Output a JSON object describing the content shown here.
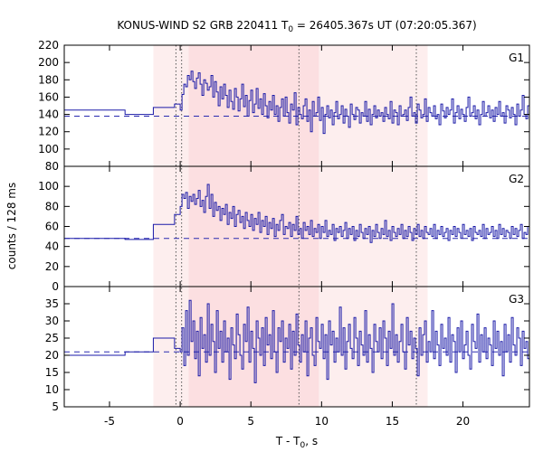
{
  "chart_data": {
    "type": "line",
    "title_main": "KONUS-WIND S2 GRB 220411 T",
    "title_sub": "0",
    "title_rest": " = 26405.367s UT (07:20:05.367)",
    "xlabel_main": "T - T",
    "xlabel_sub": "0",
    "xlabel_rest": ", s",
    "ylabel": "counts / 128 ms",
    "xlim": [
      -8.2,
      24.7
    ],
    "xticks": [
      -5,
      0,
      5,
      10,
      15,
      20
    ],
    "shaded_light": [
      -1.9,
      17.5
    ],
    "shaded_dark": [
      0.6,
      9.8
    ],
    "dotted_lines": [
      -0.3,
      0.1,
      8.4,
      16.7
    ],
    "panels": [
      {
        "name": "G1",
        "ylim": [
          80,
          220
        ],
        "yticks": [
          80,
          100,
          120,
          140,
          160,
          180,
          200,
          220
        ],
        "background": 138,
        "pre_steps": [
          {
            "x": [
              -8.2,
              -3.9
            ],
            "y": 145
          },
          {
            "x": [
              -3.9,
              -1.9
            ],
            "y": 140
          },
          {
            "x": [
              -1.9,
              -0.4
            ],
            "y": 148
          },
          {
            "x": [
              -0.4,
              0.0
            ],
            "y": 152
          }
        ],
        "series": {
          "start": 0.0,
          "dt": 0.128,
          "values": [
            145,
            163,
            175,
            172,
            185,
            180,
            190,
            178,
            170,
            182,
            188,
            175,
            162,
            180,
            176,
            168,
            172,
            185,
            160,
            178,
            166,
            150,
            172,
            158,
            175,
            162,
            148,
            168,
            155,
            146,
            170,
            160,
            144,
            158,
            175,
            149,
            162,
            138,
            156,
            168,
            142,
            152,
            170,
            147,
            158,
            140,
            164,
            150,
            136,
            155,
            145,
            162,
            140,
            150,
            132,
            148,
            158,
            138,
            160,
            142,
            130,
            152,
            145,
            165,
            128,
            148,
            140,
            135,
            150,
            158,
            132,
            145,
            120,
            155,
            138,
            142,
            160,
            133,
            148,
            118,
            140,
            150,
            136,
            145,
            128,
            142,
            155,
            135,
            140,
            150,
            130,
            146,
            138,
            125,
            152,
            140,
            134,
            148,
            145,
            130,
            142,
            138,
            155,
            132,
            146,
            128,
            140,
            150,
            136,
            145,
            138,
            142,
            132,
            148,
            140,
            135,
            155,
            130,
            145,
            142,
            128,
            150,
            138,
            140,
            145,
            133,
            148,
            160,
            138,
            142,
            130,
            152,
            145,
            136,
            140,
            158,
            132,
            148,
            142,
            138,
            150,
            135,
            140,
            128,
            152,
            144,
            136,
            148,
            140,
            145,
            158,
            130,
            142,
            150,
            135,
            146,
            140,
            132,
            148,
            160,
            138,
            142,
            150,
            135,
            145,
            128,
            140,
            155,
            138,
            142,
            150,
            136,
            145,
            132,
            148,
            140,
            155,
            138,
            142,
            130,
            150,
            145,
            136,
            148,
            140,
            128,
            152,
            138,
            145,
            162,
            140,
            135,
            150,
            142,
            148,
            138,
            145,
            160,
            133,
            142,
            150,
            138,
            145,
            165,
            140,
            148,
            155,
            170,
            150,
            145,
            162,
            140,
            158,
            148,
            168,
            142,
            150,
            155,
            138,
            148,
            160,
            145,
            140,
            152,
            135,
            158,
            148,
            140,
            150,
            162,
            145,
            138,
            155,
            142,
            150,
            130,
            148,
            158,
            140,
            145,
            152,
            135,
            150,
            142,
            128,
            148,
            155,
            138,
            145,
            150,
            140,
            160,
            135,
            148,
            142,
            130,
            150,
            145,
            138,
            155,
            140,
            148,
            132,
            150,
            142,
            138,
            152,
            145,
            140,
            148,
            136,
            155,
            142,
            150,
            128,
            145,
            152,
            140,
            138,
            158,
            145,
            150,
            135,
            148,
            142,
            160,
            138,
            152,
            145,
            140,
            148,
            136,
            150,
            142,
            155,
            138,
            145,
            130,
            152,
            148,
            140,
            162,
            145,
            138,
            150,
            142,
            148,
            155,
            135,
            145,
            140,
            150,
            128,
            148,
            158,
            142,
            138,
            152,
            145,
            140,
            160,
            135,
            150,
            148,
            142,
            138,
            155,
            145,
            140,
            150,
            136,
            148,
            170,
            142
          ]
        }
      },
      {
        "name": "G2",
        "ylim": [
          0,
          120
        ],
        "yticks": [
          0,
          20,
          40,
          60,
          80,
          100
        ],
        "background": 48,
        "pre_steps": [
          {
            "x": [
              -8.2,
              -3.9
            ],
            "y": 48
          },
          {
            "x": [
              -3.9,
              -1.9
            ],
            "y": 47
          },
          {
            "x": [
              -1.9,
              -0.4
            ],
            "y": 62
          },
          {
            "x": [
              -0.4,
              0.0
            ],
            "y": 72
          }
        ],
        "series": {
          "start": 0.0,
          "dt": 0.128,
          "values": [
            80,
            92,
            88,
            94,
            78,
            90,
            85,
            92,
            82,
            88,
            96,
            80,
            86,
            74,
            90,
            102,
            78,
            92,
            70,
            84,
            76,
            80,
            66,
            78,
            72,
            82,
            62,
            74,
            68,
            80,
            60,
            72,
            76,
            64,
            70,
            58,
            74,
            66,
            60,
            72,
            56,
            68,
            62,
            74,
            54,
            66,
            60,
            70,
            52,
            64,
            58,
            68,
            50,
            62,
            56,
            66,
            72,
            52,
            60,
            58,
            64,
            50,
            62,
            56,
            70,
            52,
            58,
            48,
            64,
            56,
            60,
            52,
            66,
            50,
            58,
            54,
            62,
            48,
            60,
            54,
            66,
            50,
            56,
            52,
            62,
            46,
            58,
            54,
            60,
            50,
            56,
            64,
            48,
            58,
            52,
            60,
            46,
            56,
            50,
            62,
            54,
            48,
            58,
            52,
            60,
            44,
            56,
            50,
            62,
            54,
            48,
            58,
            52,
            66,
            50,
            56,
            46,
            60,
            54,
            50,
            58,
            52,
            62,
            48,
            56,
            50,
            60,
            54,
            46,
            58,
            52,
            62,
            50,
            56,
            48,
            60,
            54,
            52,
            58,
            50,
            62,
            48,
            56,
            52,
            60,
            50,
            54,
            58,
            46,
            56,
            52,
            60,
            50,
            58,
            54,
            48,
            62,
            52,
            56,
            50,
            58,
            46,
            60,
            54,
            52,
            56,
            50,
            62,
            48,
            58,
            52,
            54,
            60,
            50,
            56,
            48,
            62,
            52,
            58,
            50,
            56,
            54,
            48,
            60,
            52,
            58,
            50,
            56,
            62,
            48,
            54,
            52,
            60,
            50,
            58,
            54,
            48,
            56,
            52,
            62,
            50,
            58,
            54,
            52,
            60,
            56,
            64,
            58,
            68,
            62,
            72,
            66,
            60,
            64,
            58,
            66,
            60,
            54,
            62,
            58,
            52,
            60,
            56,
            50,
            58,
            54,
            62,
            52,
            56,
            50,
            60,
            54,
            48,
            58,
            52,
            56,
            50,
            60,
            46,
            54,
            52,
            58,
            50,
            56,
            48,
            60,
            52,
            54,
            50,
            58,
            46,
            56,
            52,
            60,
            50,
            54,
            48,
            58,
            52,
            56,
            50,
            60,
            48,
            54,
            52,
            58,
            46,
            56,
            50,
            60,
            52,
            54,
            48,
            58,
            50,
            56,
            52,
            60,
            48,
            54,
            50,
            58,
            52,
            56,
            46,
            60,
            50,
            54,
            52,
            58,
            48,
            56,
            50,
            60,
            52,
            54,
            48,
            58,
            50,
            56,
            52,
            60,
            46,
            54,
            50,
            58,
            52,
            56,
            48,
            60,
            50,
            54,
            52,
            58,
            48,
            56,
            50,
            54,
            52,
            58,
            46,
            56,
            50,
            54,
            48,
            52,
            50,
            56
          ]
        }
      },
      {
        "name": "G3",
        "ylim": [
          5,
          40
        ],
        "yticks": [
          5,
          10,
          15,
          20,
          25,
          30,
          35
        ],
        "background": 21,
        "pre_steps": [
          {
            "x": [
              -8.2,
              -3.9
            ],
            "y": 20
          },
          {
            "x": [
              -3.9,
              -1.9
            ],
            "y": 21
          },
          {
            "x": [
              -1.9,
              -0.4
            ],
            "y": 25
          },
          {
            "x": [
              -0.4,
              0.0
            ],
            "y": 22
          }
        ],
        "series": {
          "start": 0.0,
          "dt": 0.128,
          "values": [
            21,
            28,
            17,
            33,
            20,
            36,
            24,
            30,
            19,
            27,
            14,
            31,
            22,
            26,
            18,
            35,
            20,
            29,
            24,
            15,
            33,
            22,
            27,
            18,
            30,
            21,
            25,
            13,
            28,
            23,
            19,
            32,
            26,
            20,
            16,
            29,
            24,
            34,
            18,
            27,
            22,
            12,
            30,
            25,
            20,
            28,
            17,
            31,
            23,
            26,
            19,
            33,
            21,
            15,
            28,
            24,
            30,
            18,
            25,
            22,
            29,
            16,
            27,
            20,
            32,
            23,
            18,
            26,
            21,
            30,
            14,
            25,
            28,
            20,
            17,
            31,
            24,
            22,
            29,
            19,
            26,
            13,
            30,
            23,
            27,
            18,
            25,
            21,
            34,
            20,
            28,
            16,
            24,
            29,
            22,
            19,
            31,
            25,
            17,
            27,
            23,
            20,
            33,
            18,
            26,
            22,
            15,
            29,
            24,
            21,
            28,
            19,
            30,
            25,
            17,
            27,
            22,
            35,
            20,
            26,
            18,
            24,
            29,
            21,
            16,
            31,
            23,
            27,
            19,
            25,
            22,
            14,
            28,
            20,
            26,
            30,
            18,
            24,
            21,
            33,
            19,
            27,
            23,
            17,
            29,
            22,
            25,
            20,
            31,
            18,
            26,
            24,
            15,
            28,
            21,
            30,
            19,
            23,
            27,
            20,
            16,
            29,
            24,
            22,
            32,
            18,
            26,
            21,
            28,
            19,
            25,
            23,
            17,
            30,
            22,
            27,
            20,
            24,
            14,
            29,
            21,
            26,
            18,
            31,
            23,
            20,
            28,
            25,
            17,
            27,
            22,
            24,
            19,
            30,
            21,
            26,
            16,
            28,
            23,
            20,
            25,
            18,
            29,
            24,
            21,
            27,
            19,
            33,
            22,
            26,
            18,
            24,
            29,
            20,
            17,
            28,
            23,
            25,
            21,
            30,
            19,
            26,
            22,
            15,
            27,
            24,
            20,
            29,
            18,
            25,
            23,
            28,
            21,
            19,
            31,
            24,
            26,
            20,
            17,
            28,
            22,
            25,
            19,
            30,
            23,
            21,
            27,
            18,
            26,
            24,
            20,
            29,
            16,
            25,
            22,
            28,
            19,
            23,
            27,
            21,
            24,
            18,
            30,
            22,
            26,
            20,
            25,
            17,
            28,
            23,
            21,
            29,
            19,
            26,
            24,
            22,
            27,
            18,
            25,
            20,
            31,
            23,
            21,
            26,
            19,
            28,
            24,
            17,
            25,
            22,
            29,
            20,
            26,
            23,
            18,
            27,
            21,
            30,
            24,
            19,
            25,
            22,
            28,
            20,
            16,
            26,
            23,
            29,
            21,
            24,
            27,
            19,
            25,
            22,
            18,
            30,
            23,
            26,
            20,
            28,
            24,
            21,
            33,
            19,
            26,
            22,
            15
          ]
        }
      }
    ]
  }
}
